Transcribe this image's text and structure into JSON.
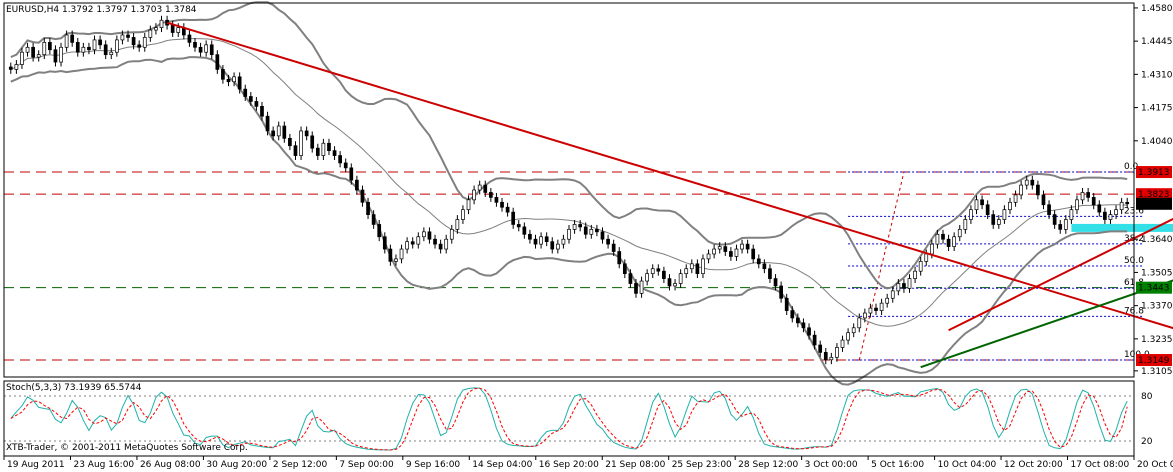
{
  "chart_data": {
    "type": "candlestick",
    "title": "EURUSD,H4  1.3792 1.3797 1.3703 1.3784",
    "instrument": "EURUSD",
    "timeframe": "H4",
    "ohlc_last": {
      "open": 1.3792,
      "high": 1.3797,
      "low": 1.3703,
      "close": 1.3784
    },
    "price_axis": {
      "ticks": [
        "1.4580",
        "1.4445",
        "1.4310",
        "1.4175",
        "1.4040",
        "1.3640",
        "1.3505",
        "1.3370",
        "1.3235",
        "1.3105"
      ],
      "range": [
        1.308,
        1.46
      ]
    },
    "price_tags": [
      {
        "value": "1.3913",
        "color": "#e00000"
      },
      {
        "value": "1.3823",
        "color": "#e00000"
      },
      {
        "value": "1.3784",
        "color": "#000000"
      },
      {
        "value": "1.3443",
        "color": "#008000"
      },
      {
        "value": "1.3149",
        "color": "#e00000"
      }
    ],
    "horizontal_levels": [
      {
        "price": 1.3913,
        "color": "#c00000",
        "style": "dashed"
      },
      {
        "price": 1.3823,
        "color": "#c00000",
        "style": "dashed"
      },
      {
        "price": 1.3443,
        "color": "#006400",
        "style": "dashed"
      },
      {
        "price": 1.3149,
        "color": "#c00000",
        "style": "dashed"
      }
    ],
    "fibonacci": {
      "color": "#0000cc",
      "high": 1.3913,
      "low": 1.3149,
      "levels": [
        {
          "label": "0.0",
          "ratio": 0.0
        },
        {
          "label": "23.6",
          "ratio": 0.236
        },
        {
          "label": "38.2",
          "ratio": 0.382
        },
        {
          "label": "50.0",
          "ratio": 0.5
        },
        {
          "label": "61.8",
          "ratio": 0.618
        },
        {
          "label": "76.8",
          "ratio": 0.768
        },
        {
          "label": "100.0",
          "ratio": 1.0
        }
      ]
    },
    "trendlines": [
      {
        "name": "downtrend",
        "color": "#cc0000",
        "from": [
          28,
          1.452
        ],
        "to": [
          240,
          1.306
        ]
      },
      {
        "name": "channel-upper",
        "color": "#cc0000",
        "from": [
          168,
          1.327
        ],
        "to": [
          240,
          1.408
        ]
      },
      {
        "name": "channel-lower-ext",
        "color": "#cc0000",
        "from": [
          210,
          1.398
        ],
        "to": [
          240,
          1.438
        ],
        "style": "dashed"
      },
      {
        "name": "support",
        "color": "#006400",
        "from": [
          163,
          1.312
        ],
        "to": [
          240,
          1.372
        ]
      },
      {
        "name": "steep-support",
        "color": "#006400",
        "from": [
          218,
          1.368
        ],
        "to": [
          240,
          1.424
        ]
      },
      {
        "name": "magenta-upper",
        "color": "#aa00aa",
        "from": [
          210,
          1.39
        ],
        "to": [
          240,
          1.378
        ]
      },
      {
        "name": "magenta-lower",
        "color": "#aa00aa",
        "from": [
          210,
          1.368
        ],
        "to": [
          240,
          1.357
        ]
      }
    ],
    "support_zone": {
      "color": "#33e0e8",
      "price_top": 1.369,
      "price_bottom": 1.366,
      "from_bar": 190,
      "to_bar": 238
    },
    "x_axis_labels": [
      "19 Aug 2011",
      "23 Aug 16:00",
      "26 Aug 08:00",
      "30 Aug 20:00",
      "2 Sep 12:00",
      "7 Sep 00:00",
      "9 Sep 16:00",
      "14 Sep 04:00",
      "16 Sep 20:00",
      "21 Sep 08:00",
      "25 Sep 23:00",
      "28 Sep 12:00",
      "3 Oct 00:00",
      "5 Oct 16:00",
      "10 Oct 04:00",
      "12 Oct 20:00",
      "17 Oct 08:00",
      "20 Oct 00:00"
    ],
    "series": {
      "close": [
        1.433,
        1.435,
        1.44,
        1.442,
        1.438,
        1.439,
        1.444,
        1.441,
        1.436,
        1.442,
        1.447,
        1.444,
        1.44,
        1.442,
        1.441,
        1.445,
        1.443,
        1.439,
        1.44,
        1.445,
        1.447,
        1.446,
        1.443,
        1.442,
        1.446,
        1.449,
        1.45,
        1.453,
        1.451,
        1.448,
        1.45,
        1.447,
        1.444,
        1.442,
        1.44,
        1.443,
        1.439,
        1.433,
        1.429,
        1.428,
        1.43,
        1.425,
        1.422,
        1.42,
        1.418,
        1.414,
        1.408,
        1.406,
        1.41,
        1.405,
        1.402,
        1.398,
        1.408,
        1.406,
        1.401,
        1.398,
        1.403,
        1.4,
        1.398,
        1.395,
        1.393,
        1.388,
        1.384,
        1.379,
        1.374,
        1.37,
        1.365,
        1.36,
        1.355,
        1.356,
        1.36,
        1.363,
        1.362,
        1.365,
        1.367,
        1.364,
        1.362,
        1.36,
        1.364,
        1.368,
        1.372,
        1.376,
        1.38,
        1.384,
        1.386,
        1.383,
        1.381,
        1.379,
        1.377,
        1.375,
        1.37,
        1.369,
        1.366,
        1.364,
        1.362,
        1.365,
        1.363,
        1.36,
        1.362,
        1.364,
        1.368,
        1.37,
        1.369,
        1.366,
        1.368,
        1.367,
        1.364,
        1.362,
        1.359,
        1.354,
        1.35,
        1.346,
        1.342,
        1.347,
        1.35,
        1.352,
        1.351,
        1.348,
        1.345,
        1.346,
        1.35,
        1.352,
        1.354,
        1.35,
        1.356,
        1.358,
        1.36,
        1.361,
        1.359,
        1.357,
        1.36,
        1.362,
        1.36,
        1.356,
        1.354,
        1.352,
        1.348,
        1.345,
        1.34,
        1.335,
        1.332,
        1.33,
        1.328,
        1.325,
        1.321,
        1.318,
        1.315,
        1.316,
        1.32,
        1.323,
        1.326,
        1.328,
        1.332,
        1.334,
        1.336,
        1.335,
        1.338,
        1.34,
        1.343,
        1.346,
        1.344,
        1.348,
        1.351,
        1.355,
        1.358,
        1.362,
        1.366,
        1.364,
        1.361,
        1.365,
        1.368,
        1.372,
        1.376,
        1.38,
        1.378,
        1.374,
        1.37,
        1.372,
        1.376,
        1.379,
        1.382,
        1.386,
        1.388,
        1.386,
        1.382,
        1.378,
        1.374,
        1.37,
        1.368,
        1.372,
        1.376,
        1.38,
        1.383,
        1.381,
        1.378,
        1.375,
        1.372,
        1.374,
        1.376,
        1.379,
        1.3784
      ]
    },
    "subchart": {
      "title": "Stoch(5,3,3) 73.1939 65.5744",
      "parameters": "5,3,3",
      "main_last": 73.1939,
      "signal_last": 65.5744,
      "levels": [
        80,
        20
      ],
      "ticks": [
        "80",
        "20"
      ],
      "main_color": "#20b2aa",
      "signal_color": "#ff0000"
    }
  },
  "copyright": "XTB-Trader, © 2001-2011 MetaQuotes Software Corp."
}
